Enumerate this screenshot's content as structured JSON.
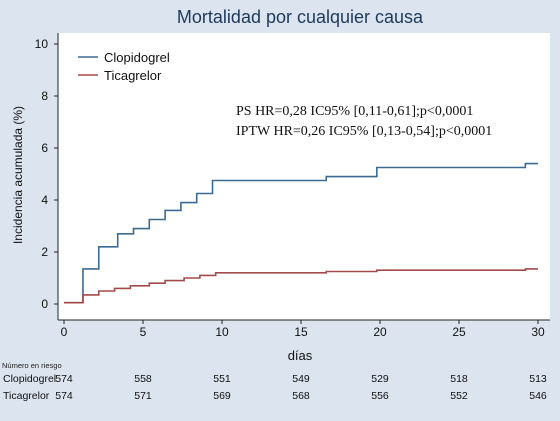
{
  "chart_data": {
    "type": "line",
    "title": "Mortalidad por cualquier causa",
    "xlabel": "días",
    "ylabel": "Incidencia acumulada (%)",
    "xlim": [
      0,
      30
    ],
    "ylim": [
      0,
      10
    ],
    "xticks": [
      "0",
      "5",
      "10",
      "15",
      "20",
      "25",
      "30"
    ],
    "yticks": [
      "0",
      "2",
      "4",
      "6",
      "8",
      "10"
    ],
    "grid": false,
    "legend_position": "top-left",
    "colors": {
      "Clopidogrel": "#3b6a93",
      "Ticagrelor": "#a54a4a"
    },
    "series": [
      {
        "name": "Clopidogrel",
        "step": true,
        "x": [
          0.2,
          1.2,
          2.2,
          3.4,
          4.4,
          5.4,
          6.4,
          7.4,
          8.4,
          9.4,
          16.6,
          19.8,
          29.2,
          30
        ],
        "y": [
          0.05,
          1.35,
          2.2,
          2.7,
          2.9,
          3.25,
          3.6,
          3.9,
          4.25,
          4.75,
          4.9,
          5.25,
          5.4,
          5.4
        ]
      },
      {
        "name": "Ticagrelor",
        "step": true,
        "x": [
          0.2,
          1.2,
          2.2,
          3.2,
          4.2,
          5.4,
          6.4,
          7.6,
          8.6,
          9.6,
          16.6,
          19.8,
          29.2,
          30
        ],
        "y": [
          0.05,
          0.35,
          0.5,
          0.6,
          0.7,
          0.8,
          0.9,
          1.0,
          1.1,
          1.2,
          1.25,
          1.3,
          1.35,
          1.35
        ]
      }
    ],
    "annotations": [
      "PS     HR=0,28 IC95% [0,11-0,61];p<0,0001",
      "IPTW HR=0,26 IC95% [0,13-0,54];p<0,0001"
    ],
    "risk_table": {
      "title": "Número en riesgo",
      "days": [
        0,
        5,
        10,
        15,
        20,
        25,
        30
      ],
      "rows": [
        {
          "label": "Clopidogrel",
          "values": [
            "574",
            "558",
            "551",
            "549",
            "529",
            "518",
            "513"
          ]
        },
        {
          "label": "Ticagrelor",
          "values": [
            "574",
            "571",
            "569",
            "568",
            "556",
            "552",
            "546"
          ]
        }
      ]
    }
  }
}
